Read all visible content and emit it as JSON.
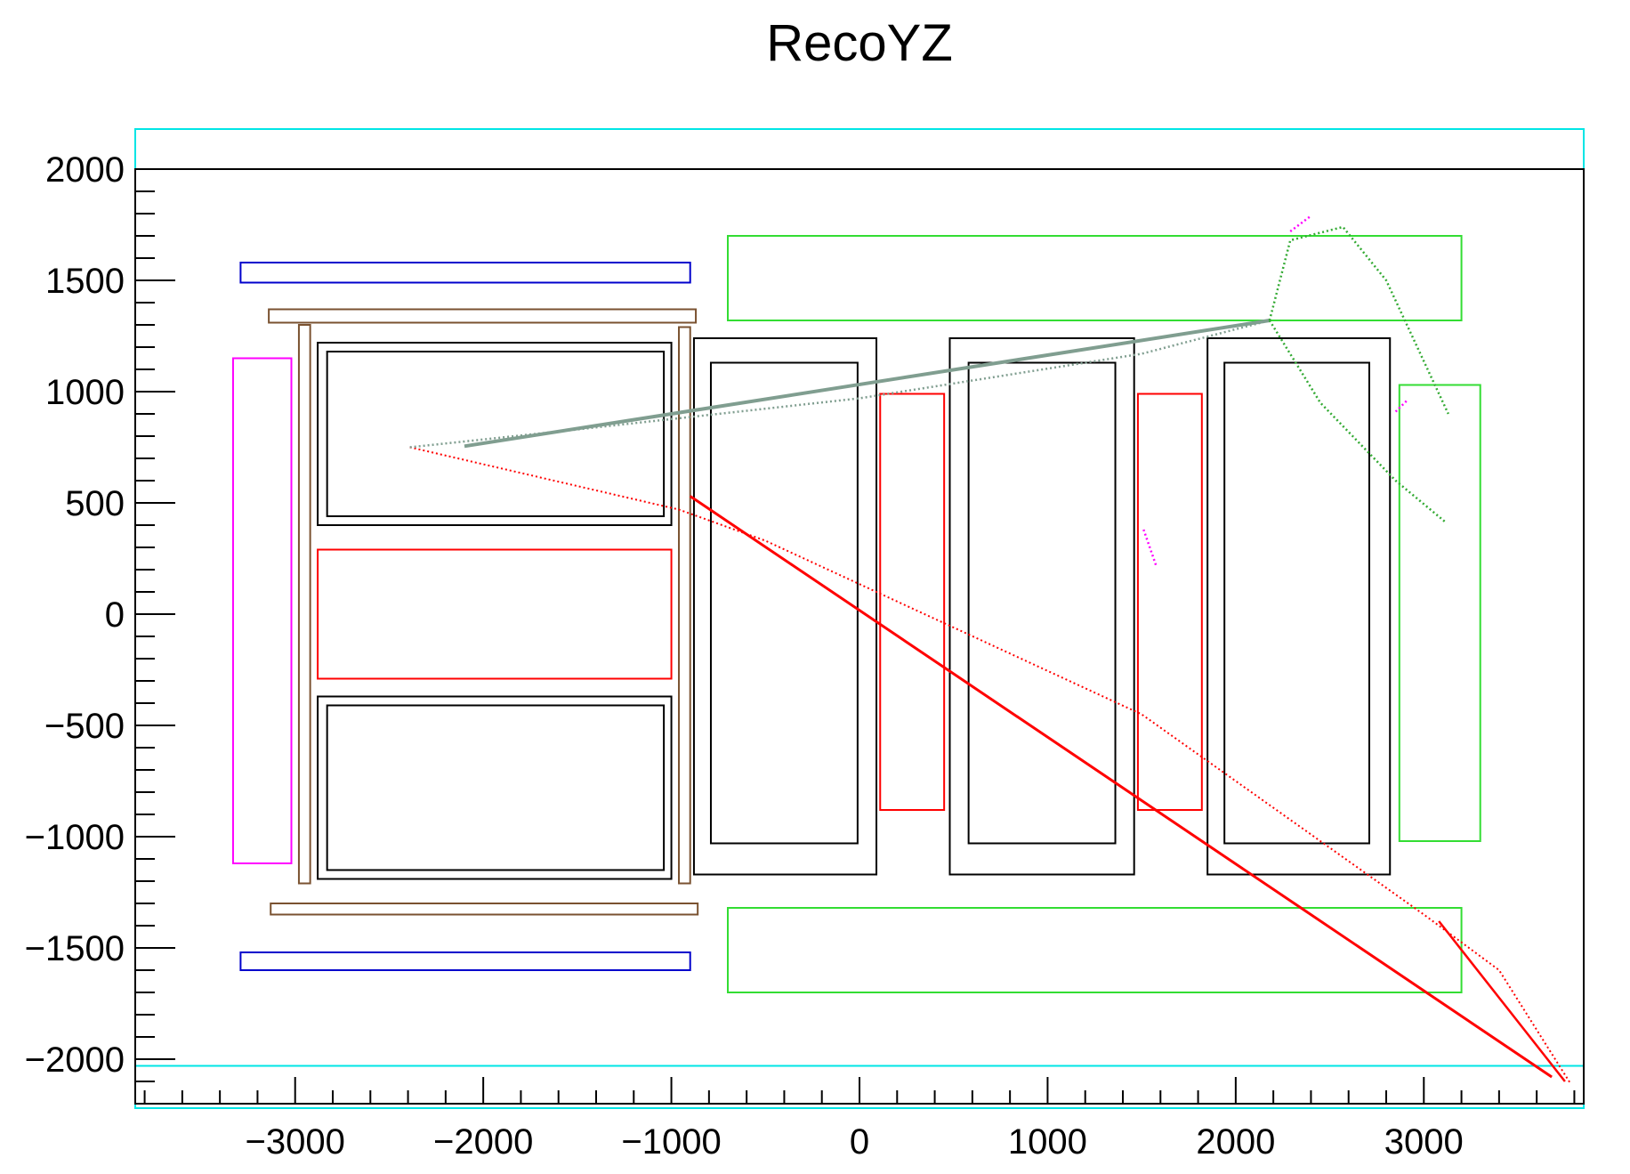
{
  "chart_data": {
    "type": "scatter",
    "title": "RecoYZ",
    "xlabel": "",
    "ylabel": "",
    "xlim": [
      -3850,
      3850
    ],
    "ylim": [
      -2200,
      2000
    ],
    "x_ticks": [
      -3000,
      -2000,
      -1000,
      0,
      1000,
      2000,
      3000
    ],
    "x_tick_labels": [
      "−3000",
      "−2000",
      "−1000",
      "0",
      "1000",
      "2000",
      "3000"
    ],
    "y_ticks": [
      2000,
      1500,
      1000,
      500,
      0,
      -500,
      -1000,
      -1500,
      -2000
    ],
    "y_tick_labels": [
      "2000",
      "1500",
      "1000",
      "500",
      "0",
      "−500",
      "−1000",
      "−1500",
      "−2000"
    ],
    "grid": false,
    "legend": "none",
    "detector_boxes": [
      {
        "color": "#00e5e5",
        "x": [
          -3850,
          3850
        ],
        "y": [
          2000,
          2180
        ]
      },
      {
        "color": "#00e5e5",
        "x": [
          -3850,
          3850
        ],
        "y": [
          -2220,
          -2030
        ]
      },
      {
        "color": "#0000cc",
        "x": [
          -3290,
          -900
        ],
        "y": [
          1490,
          1580
        ]
      },
      {
        "color": "#0000cc",
        "x": [
          -3290,
          -900
        ],
        "y": [
          -1600,
          -1520
        ]
      },
      {
        "color": "#7a5230",
        "x": [
          -3140,
          -870
        ],
        "y": [
          1310,
          1370
        ]
      },
      {
        "color": "#7a5230",
        "x": [
          -3130,
          -860
        ],
        "y": [
          -1350,
          -1300
        ]
      },
      {
        "color": "#7a5230",
        "x": [
          -2980,
          -2920
        ],
        "y": [
          -1210,
          1300
        ]
      },
      {
        "color": "#7a5230",
        "x": [
          -960,
          -900
        ],
        "y": [
          -1210,
          1290
        ]
      },
      {
        "color": "#ff00ff",
        "x": [
          -3330,
          -3020
        ],
        "y": [
          -1120,
          1150
        ]
      },
      {
        "color": "#000000",
        "x": [
          -2880,
          -1000
        ],
        "y": [
          400,
          1220
        ]
      },
      {
        "color": "#000000",
        "x": [
          -2830,
          -1040
        ],
        "y": [
          440,
          1180
        ]
      },
      {
        "color": "#000000",
        "x": [
          -2880,
          -1000
        ],
        "y": [
          -1190,
          -370
        ]
      },
      {
        "color": "#000000",
        "x": [
          -2830,
          -1040
        ],
        "y": [
          -1150,
          -410
        ]
      },
      {
        "color": "#ff0000",
        "x": [
          -2880,
          -1000
        ],
        "y": [
          -290,
          290
        ]
      },
      {
        "color": "#000000",
        "x": [
          -880,
          90
        ],
        "y": [
          -1170,
          1240
        ]
      },
      {
        "color": "#000000",
        "x": [
          -790,
          -10
        ],
        "y": [
          -1030,
          1130
        ]
      },
      {
        "color": "#000000",
        "x": [
          480,
          1460
        ],
        "y": [
          -1170,
          1240
        ]
      },
      {
        "color": "#000000",
        "x": [
          580,
          1360
        ],
        "y": [
          -1030,
          1130
        ]
      },
      {
        "color": "#000000",
        "x": [
          1850,
          2820
        ],
        "y": [
          -1170,
          1240
        ]
      },
      {
        "color": "#000000",
        "x": [
          1940,
          2710
        ],
        "y": [
          -1030,
          1130
        ]
      },
      {
        "color": "#ff0000",
        "x": [
          110,
          450
        ],
        "y": [
          -880,
          990
        ]
      },
      {
        "color": "#ff0000",
        "x": [
          1480,
          1820
        ],
        "y": [
          -880,
          990
        ]
      },
      {
        "color": "#33dd33",
        "x": [
          -700,
          3200
        ],
        "y": [
          1320,
          1700
        ]
      },
      {
        "color": "#33dd33",
        "x": [
          -700,
          3200
        ],
        "y": [
          -1700,
          -1320
        ]
      },
      {
        "color": "#33dd33",
        "x": [
          2870,
          3300
        ],
        "y": [
          -1020,
          1030
        ]
      }
    ],
    "series": [
      {
        "color": "#ff0000",
        "style": "solid",
        "width": 3,
        "x": [
          -900,
          3680
        ],
        "y": [
          530,
          -2080
        ]
      },
      {
        "color": "#ff0000",
        "style": "dotted",
        "width": 2,
        "x": [
          -2390,
          -960,
          -500,
          1500,
          3000,
          3400,
          3780
        ],
        "y": [
          750,
          470,
          330,
          -450,
          -1350,
          -1600,
          -2110
        ]
      },
      {
        "color": "#ff0000",
        "style": "solid",
        "width": 2.5,
        "x": [
          3080,
          3750
        ],
        "y": [
          -1380,
          -2100
        ]
      },
      {
        "color": "#809e90",
        "style": "solid",
        "width": 4,
        "x": [
          -2100,
          2180
        ],
        "y": [
          755,
          1320
        ]
      },
      {
        "color": "#809e90",
        "style": "dotted",
        "width": 2.5,
        "x": [
          -2390,
          -1500,
          0,
          1500,
          2180
        ],
        "y": [
          750,
          830,
          970,
          1170,
          1320
        ]
      },
      {
        "color": "#33aa33",
        "style": "dotted",
        "width": 2.5,
        "x": [
          2180,
          2290,
          2570,
          2800,
          3130
        ],
        "y": [
          1320,
          1680,
          1740,
          1500,
          900
        ]
      },
      {
        "color": "#33aa33",
        "style": "dotted",
        "width": 2.5,
        "x": [
          2180,
          2450,
          2850,
          3120
        ],
        "y": [
          1320,
          950,
          600,
          410
        ]
      },
      {
        "color": "#ff00ff",
        "style": "dotted",
        "width": 2.5,
        "x": [
          2290,
          2400
        ],
        "y": [
          1720,
          1790
        ]
      },
      {
        "color": "#ff00ff",
        "style": "dotted",
        "width": 2.5,
        "x": [
          2850,
          2910
        ],
        "y": [
          910,
          960
        ]
      },
      {
        "color": "#ff00ff",
        "style": "dotted",
        "width": 2.5,
        "x": [
          1510,
          1580
        ],
        "y": [
          380,
          210
        ]
      }
    ]
  }
}
